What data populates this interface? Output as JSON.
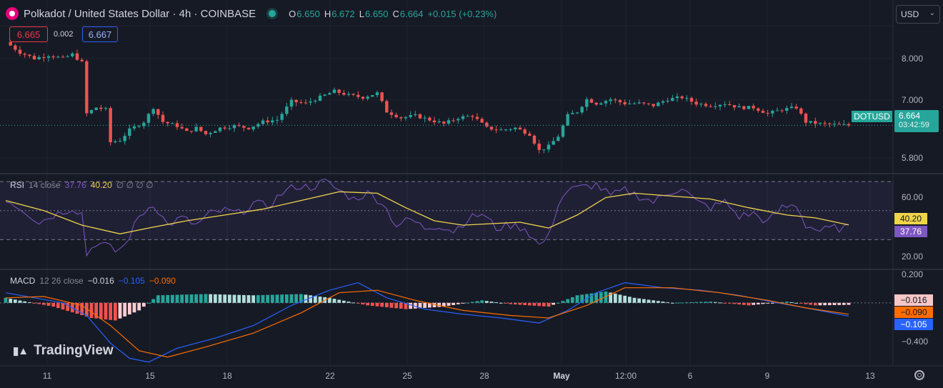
{
  "header": {
    "title": "Polkadot / United States Dollar · 4h · COINBASE",
    "ohlc": [
      {
        "k": "O",
        "v": "6.650"
      },
      {
        "k": "H",
        "v": "6.672"
      },
      {
        "k": "L",
        "v": "6.650"
      },
      {
        "k": "C",
        "v": "6.664"
      },
      {
        "k": "",
        "v": "+0.015 (+0.23%)"
      }
    ],
    "currency": "USD"
  },
  "spread": {
    "bid": "6.665",
    "diff": "0.002",
    "ask": "6.667"
  },
  "price_tags": {
    "symbol": "DOTUSD",
    "price": "6.664",
    "countdown": "03:42:59"
  },
  "rsi": {
    "label": "RSI",
    "params": "14 close",
    "value": "37.76",
    "ma": "40.20",
    "extra": "∅ ∅ ∅ ∅"
  },
  "macd": {
    "label": "MACD",
    "params": "12 26 close",
    "hist": "−0.016",
    "macd": "−0.105",
    "signal": "−0.090"
  },
  "brand": "TradingView",
  "colors": {
    "up": "#26a69a",
    "down": "#ef5350",
    "rsi": "#7e57c2",
    "rsi_ma": "#f0d44c",
    "macd": "#2962ff",
    "signal": "#ff6d00"
  },
  "chart_data": {
    "type": "line",
    "symbol": "DOTUSD",
    "timeframe": "4h",
    "x_labels": [
      "11",
      "15",
      "18",
      "22",
      "25",
      "28",
      "May",
      "12:00",
      "6",
      "9",
      "13"
    ],
    "price": {
      "y_ticks": [
        "8.000",
        "7.000",
        "5.800"
      ],
      "ylim": [
        5.5,
        9.1
      ],
      "close_path": [
        {
          "t": 0,
          "c": 8.7
        },
        {
          "t": 3,
          "c": 8.45
        },
        {
          "t": 6,
          "c": 8.3
        },
        {
          "t": 9,
          "c": 8.38
        },
        {
          "t": 12,
          "c": 8.3
        },
        {
          "t": 14,
          "c": 8.4
        },
        {
          "t": 16,
          "c": 8.2
        },
        {
          "t": 17,
          "c": 6.95
        },
        {
          "t": 19,
          "c": 7.1
        },
        {
          "t": 21,
          "c": 7.05
        },
        {
          "t": 22,
          "c": 6.25
        },
        {
          "t": 24,
          "c": 6.3
        },
        {
          "t": 26,
          "c": 6.55
        },
        {
          "t": 29,
          "c": 6.75
        },
        {
          "t": 31,
          "c": 7.1
        },
        {
          "t": 33,
          "c": 6.75
        },
        {
          "t": 36,
          "c": 6.65
        },
        {
          "t": 38,
          "c": 6.5
        },
        {
          "t": 40,
          "c": 6.6
        },
        {
          "t": 42,
          "c": 6.45
        },
        {
          "t": 45,
          "c": 6.6
        },
        {
          "t": 48,
          "c": 6.65
        },
        {
          "t": 51,
          "c": 6.6
        },
        {
          "t": 54,
          "c": 6.75
        },
        {
          "t": 57,
          "c": 6.8
        },
        {
          "t": 60,
          "c": 7.25
        },
        {
          "t": 63,
          "c": 7.2
        },
        {
          "t": 66,
          "c": 7.35
        },
        {
          "t": 69,
          "c": 7.5
        },
        {
          "t": 72,
          "c": 7.4
        },
        {
          "t": 75,
          "c": 7.35
        },
        {
          "t": 78,
          "c": 7.45
        },
        {
          "t": 80,
          "c": 7.0
        },
        {
          "t": 83,
          "c": 6.85
        },
        {
          "t": 86,
          "c": 6.9
        },
        {
          "t": 89,
          "c": 6.8
        },
        {
          "t": 92,
          "c": 6.7
        },
        {
          "t": 95,
          "c": 6.85
        },
        {
          "t": 98,
          "c": 6.9
        },
        {
          "t": 101,
          "c": 6.6
        },
        {
          "t": 104,
          "c": 6.55
        },
        {
          "t": 107,
          "c": 6.6
        },
        {
          "t": 110,
          "c": 6.45
        },
        {
          "t": 112,
          "c": 6.05
        },
        {
          "t": 114,
          "c": 6.15
        },
        {
          "t": 116,
          "c": 6.4
        },
        {
          "t": 118,
          "c": 6.9
        },
        {
          "t": 120,
          "c": 7.0
        },
        {
          "t": 122,
          "c": 7.3
        },
        {
          "t": 124,
          "c": 7.2
        },
        {
          "t": 127,
          "c": 7.3
        },
        {
          "t": 130,
          "c": 7.2
        },
        {
          "t": 133,
          "c": 7.2
        },
        {
          "t": 136,
          "c": 7.15
        },
        {
          "t": 139,
          "c": 7.3
        },
        {
          "t": 142,
          "c": 7.35
        },
        {
          "t": 145,
          "c": 7.2
        },
        {
          "t": 148,
          "c": 7.15
        },
        {
          "t": 151,
          "c": 7.2
        },
        {
          "t": 154,
          "c": 7.1
        },
        {
          "t": 157,
          "c": 7.1
        },
        {
          "t": 160,
          "c": 6.95
        },
        {
          "t": 163,
          "c": 7.05
        },
        {
          "t": 166,
          "c": 7.1
        },
        {
          "t": 168,
          "c": 6.75
        },
        {
          "t": 171,
          "c": 6.7
        },
        {
          "t": 174,
          "c": 6.68
        },
        {
          "t": 177,
          "c": 6.664
        }
      ],
      "last": 6.664
    },
    "rsi": {
      "y_ticks": [
        "60.00",
        "20.00"
      ],
      "ylim": [
        10,
        75
      ],
      "bands": [
        70,
        50,
        30
      ],
      "series": [
        {
          "t": 0,
          "v": 58
        },
        {
          "t": 4,
          "v": 50
        },
        {
          "t": 7,
          "v": 42
        },
        {
          "t": 10,
          "v": 47
        },
        {
          "t": 14,
          "v": 52
        },
        {
          "t": 16,
          "v": 48
        },
        {
          "t": 17,
          "v": 20
        },
        {
          "t": 19,
          "v": 28
        },
        {
          "t": 21,
          "v": 26
        },
        {
          "t": 23,
          "v": 22
        },
        {
          "t": 25,
          "v": 26
        },
        {
          "t": 28,
          "v": 46
        },
        {
          "t": 31,
          "v": 55
        },
        {
          "t": 34,
          "v": 40
        },
        {
          "t": 37,
          "v": 45
        },
        {
          "t": 40,
          "v": 40
        },
        {
          "t": 43,
          "v": 48
        },
        {
          "t": 46,
          "v": 50
        },
        {
          "t": 49,
          "v": 48
        },
        {
          "t": 52,
          "v": 55
        },
        {
          "t": 55,
          "v": 53
        },
        {
          "t": 58,
          "v": 62
        },
        {
          "t": 61,
          "v": 67
        },
        {
          "t": 64,
          "v": 66
        },
        {
          "t": 67,
          "v": 70
        },
        {
          "t": 70,
          "v": 64
        },
        {
          "t": 73,
          "v": 58
        },
        {
          "t": 76,
          "v": 62
        },
        {
          "t": 79,
          "v": 56
        },
        {
          "t": 82,
          "v": 40
        },
        {
          "t": 85,
          "v": 44
        },
        {
          "t": 88,
          "v": 38
        },
        {
          "t": 91,
          "v": 40
        },
        {
          "t": 94,
          "v": 36
        },
        {
          "t": 97,
          "v": 44
        },
        {
          "t": 100,
          "v": 48
        },
        {
          "t": 103,
          "v": 38
        },
        {
          "t": 106,
          "v": 40
        },
        {
          "t": 109,
          "v": 38
        },
        {
          "t": 112,
          "v": 26
        },
        {
          "t": 114,
          "v": 32
        },
        {
          "t": 116,
          "v": 55
        },
        {
          "t": 118,
          "v": 64
        },
        {
          "t": 121,
          "v": 66
        },
        {
          "t": 124,
          "v": 68
        },
        {
          "t": 127,
          "v": 60
        },
        {
          "t": 130,
          "v": 64
        },
        {
          "t": 133,
          "v": 60
        },
        {
          "t": 136,
          "v": 56
        },
        {
          "t": 139,
          "v": 62
        },
        {
          "t": 142,
          "v": 66
        },
        {
          "t": 145,
          "v": 56
        },
        {
          "t": 148,
          "v": 52
        },
        {
          "t": 151,
          "v": 56
        },
        {
          "t": 154,
          "v": 46
        },
        {
          "t": 157,
          "v": 48
        },
        {
          "t": 160,
          "v": 42
        },
        {
          "t": 163,
          "v": 52
        },
        {
          "t": 166,
          "v": 54
        },
        {
          "t": 168,
          "v": 40
        },
        {
          "t": 171,
          "v": 36
        },
        {
          "t": 174,
          "v": 38
        },
        {
          "t": 177,
          "v": 37.76
        }
      ],
      "ma_series": [
        {
          "t": 0,
          "v": 57
        },
        {
          "t": 8,
          "v": 50
        },
        {
          "t": 16,
          "v": 40
        },
        {
          "t": 24,
          "v": 34
        },
        {
          "t": 30,
          "v": 38
        },
        {
          "t": 38,
          "v": 43
        },
        {
          "t": 46,
          "v": 47
        },
        {
          "t": 54,
          "v": 51
        },
        {
          "t": 62,
          "v": 57
        },
        {
          "t": 70,
          "v": 63
        },
        {
          "t": 78,
          "v": 62
        },
        {
          "t": 84,
          "v": 52
        },
        {
          "t": 90,
          "v": 43
        },
        {
          "t": 96,
          "v": 40
        },
        {
          "t": 102,
          "v": 41
        },
        {
          "t": 108,
          "v": 42
        },
        {
          "t": 114,
          "v": 38
        },
        {
          "t": 120,
          "v": 47
        },
        {
          "t": 126,
          "v": 59
        },
        {
          "t": 132,
          "v": 62
        },
        {
          "t": 140,
          "v": 60
        },
        {
          "t": 148,
          "v": 58
        },
        {
          "t": 156,
          "v": 52
        },
        {
          "t": 164,
          "v": 47
        },
        {
          "t": 170,
          "v": 45
        },
        {
          "t": 177,
          "v": 40.2
        }
      ]
    },
    "macd": {
      "y_ticks": [
        "0.200",
        "−0.400"
      ],
      "ylim": [
        -0.5,
        0.26
      ],
      "macd_series": [
        {
          "t": 0,
          "v": 0.08
        },
        {
          "t": 6,
          "v": 0.04
        },
        {
          "t": 12,
          "v": 0.0
        },
        {
          "t": 17,
          "v": -0.1
        },
        {
          "t": 22,
          "v": -0.32
        },
        {
          "t": 26,
          "v": -0.44
        },
        {
          "t": 30,
          "v": -0.47
        },
        {
          "t": 36,
          "v": -0.36
        },
        {
          "t": 44,
          "v": -0.28
        },
        {
          "t": 52,
          "v": -0.18
        },
        {
          "t": 60,
          "v": -0.02
        },
        {
          "t": 68,
          "v": 0.1
        },
        {
          "t": 74,
          "v": 0.16
        },
        {
          "t": 80,
          "v": 0.04
        },
        {
          "t": 88,
          "v": -0.05
        },
        {
          "t": 96,
          "v": -0.09
        },
        {
          "t": 104,
          "v": -0.12
        },
        {
          "t": 112,
          "v": -0.16
        },
        {
          "t": 118,
          "v": -0.06
        },
        {
          "t": 124,
          "v": 0.08
        },
        {
          "t": 130,
          "v": 0.16
        },
        {
          "t": 138,
          "v": 0.12
        },
        {
          "t": 146,
          "v": 0.1
        },
        {
          "t": 154,
          "v": 0.06
        },
        {
          "t": 162,
          "v": 0.0
        },
        {
          "t": 168,
          "v": -0.04
        },
        {
          "t": 177,
          "v": -0.105
        }
      ],
      "signal_series": [
        {
          "t": 0,
          "v": 0.04
        },
        {
          "t": 8,
          "v": 0.05
        },
        {
          "t": 16,
          "v": -0.02
        },
        {
          "t": 22,
          "v": -0.18
        },
        {
          "t": 28,
          "v": -0.38
        },
        {
          "t": 34,
          "v": -0.43
        },
        {
          "t": 42,
          "v": -0.35
        },
        {
          "t": 52,
          "v": -0.24
        },
        {
          "t": 62,
          "v": -0.08
        },
        {
          "t": 70,
          "v": 0.08
        },
        {
          "t": 78,
          "v": 0.1
        },
        {
          "t": 86,
          "v": 0.02
        },
        {
          "t": 96,
          "v": -0.06
        },
        {
          "t": 106,
          "v": -0.1
        },
        {
          "t": 114,
          "v": -0.12
        },
        {
          "t": 122,
          "v": -0.02
        },
        {
          "t": 130,
          "v": 0.12
        },
        {
          "t": 140,
          "v": 0.12
        },
        {
          "t": 150,
          "v": 0.08
        },
        {
          "t": 160,
          "v": 0.02
        },
        {
          "t": 168,
          "v": -0.04
        },
        {
          "t": 177,
          "v": -0.09
        }
      ],
      "histogram": [
        {
          "t": 0,
          "v": 0.04
        },
        {
          "t": 10,
          "v": -0.03
        },
        {
          "t": 18,
          "v": -0.12
        },
        {
          "t": 23,
          "v": -0.14
        },
        {
          "t": 28,
          "v": -0.06
        },
        {
          "t": 32,
          "v": 0.06
        },
        {
          "t": 42,
          "v": 0.07
        },
        {
          "t": 52,
          "v": 0.06
        },
        {
          "t": 62,
          "v": 0.07
        },
        {
          "t": 68,
          "v": 0.04
        },
        {
          "t": 76,
          "v": -0.02
        },
        {
          "t": 84,
          "v": -0.05
        },
        {
          "t": 92,
          "v": -0.03
        },
        {
          "t": 100,
          "v": 0.02
        },
        {
          "t": 106,
          "v": -0.01
        },
        {
          "t": 114,
          "v": -0.03
        },
        {
          "t": 120,
          "v": 0.06
        },
        {
          "t": 126,
          "v": 0.09
        },
        {
          "t": 132,
          "v": 0.04
        },
        {
          "t": 140,
          "v": 0.0
        },
        {
          "t": 148,
          "v": 0.01
        },
        {
          "t": 156,
          "v": -0.02
        },
        {
          "t": 164,
          "v": 0.01
        },
        {
          "t": 170,
          "v": -0.02
        },
        {
          "t": 177,
          "v": -0.016
        }
      ]
    }
  }
}
